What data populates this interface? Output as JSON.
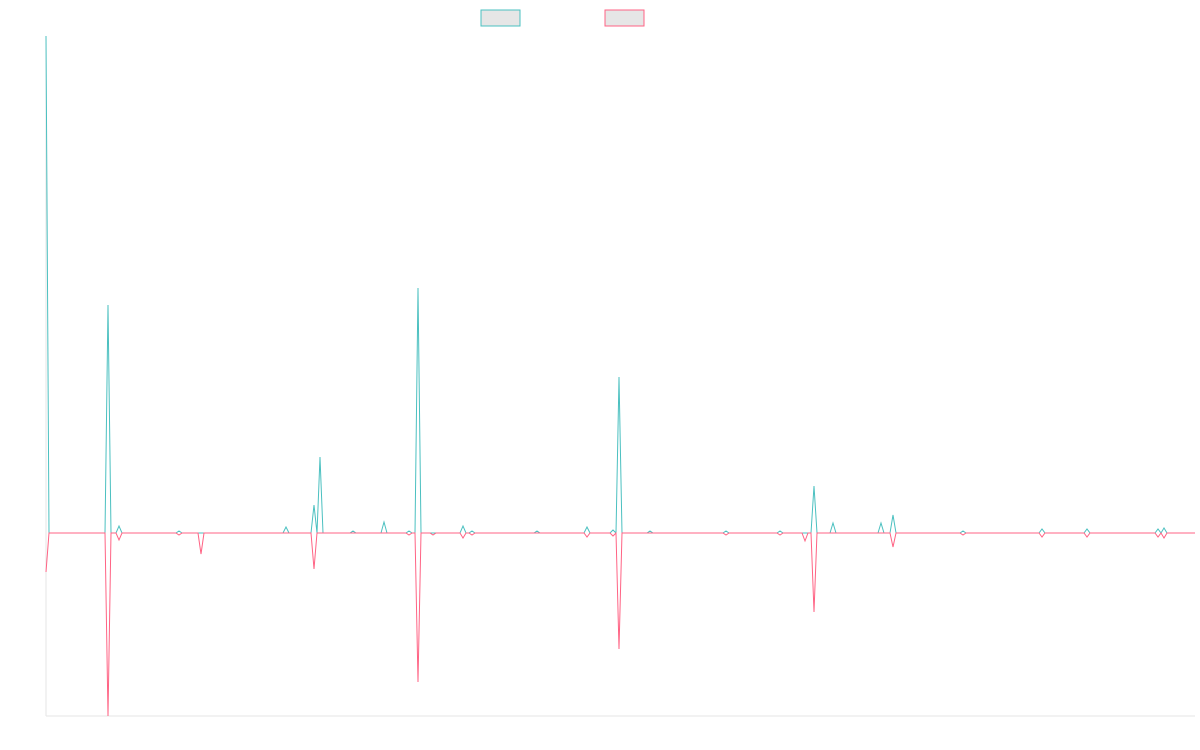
{
  "chart_data": {
    "type": "line",
    "x": [
      0,
      3,
      59,
      62,
      65,
      70,
      73,
      76,
      130,
      133,
      136,
      152,
      155,
      158,
      237,
      240,
      243,
      265,
      268,
      271,
      274,
      277,
      304,
      307,
      310,
      335,
      338,
      341,
      360,
      363,
      366,
      369,
      372,
      375,
      384,
      387,
      390,
      414,
      417,
      420,
      423,
      426,
      429,
      488,
      491,
      494,
      538,
      541,
      544,
      564,
      567,
      570,
      573,
      576,
      601,
      604,
      607,
      677,
      680,
      683,
      731,
      734,
      737,
      756,
      759,
      762,
      765,
      768,
      771,
      784,
      787,
      790,
      832,
      835,
      838,
      844,
      847,
      850,
      914,
      917,
      920,
      993,
      996,
      999,
      1038,
      1041,
      1044,
      1109,
      1112,
      1115,
      1118,
      1121,
      1149
    ],
    "series": [
      {
        "color": "#4bc0c0",
        "values": [
          497,
          0,
          0,
          228,
          0,
          0,
          7,
          0,
          0,
          2,
          0,
          0,
          0,
          0,
          0,
          6,
          0,
          0,
          28,
          0,
          76,
          0,
          0,
          2,
          0,
          0,
          11,
          0,
          0,
          2,
          0,
          0,
          245,
          0,
          0,
          0,
          0,
          0,
          7,
          0,
          0,
          2,
          0,
          0,
          2,
          0,
          0,
          6,
          0,
          0,
          3,
          0,
          156,
          0,
          0,
          2,
          0,
          0,
          2,
          0,
          0,
          2,
          0,
          0,
          0,
          0,
          0,
          47,
          0,
          0,
          10,
          0,
          0,
          10,
          0,
          0,
          18,
          0,
          0,
          2,
          0,
          0,
          4,
          0,
          0,
          4,
          0,
          0,
          4,
          0,
          5,
          0,
          0
        ]
      },
      {
        "color": "#ff6384",
        "values": [
          -39,
          0,
          0,
          -183,
          0,
          0,
          -7,
          0,
          0,
          -2,
          0,
          0,
          -21,
          0,
          0,
          0,
          0,
          0,
          -36,
          0,
          0,
          0,
          0,
          0,
          0,
          0,
          0,
          0,
          0,
          -2,
          0,
          0,
          -149,
          0,
          0,
          -2,
          0,
          0,
          -5,
          0,
          0,
          -2,
          0,
          0,
          0,
          0,
          0,
          -4,
          0,
          0,
          -3,
          0,
          -116,
          0,
          0,
          0,
          0,
          0,
          -2,
          0,
          0,
          -2,
          0,
          0,
          -8,
          0,
          0,
          -79,
          0,
          0,
          0,
          0,
          0,
          0,
          0,
          0,
          -14,
          0,
          0,
          -2,
          0,
          0,
          -4,
          0,
          0,
          -4,
          0,
          0,
          -4,
          0,
          -5,
          0,
          0
        ]
      }
    ],
    "xlim": [
      0,
      1149
    ],
    "ylim": [
      -183,
      497
    ]
  }
}
